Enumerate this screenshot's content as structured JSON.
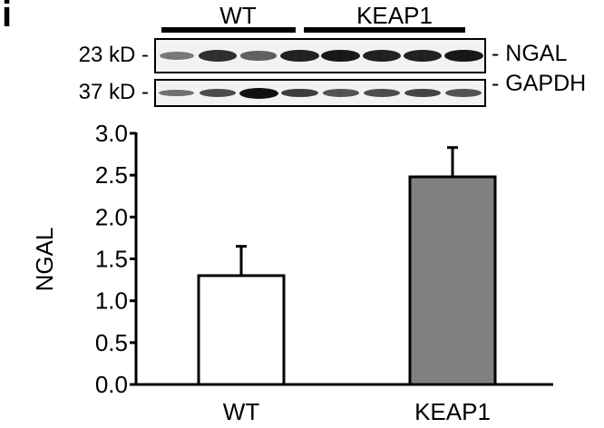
{
  "panel": {
    "letter": "i"
  },
  "blot": {
    "groups": [
      {
        "label": "WT",
        "lanes": 4
      },
      {
        "label": "KEAP1",
        "lanes": 4
      }
    ],
    "rows": [
      {
        "mw_label": "23 kD -",
        "protein_label": "- NGAL",
        "band_intensity": [
          0.3,
          0.8,
          0.45,
          0.9,
          0.95,
          0.9,
          0.9,
          0.95
        ]
      },
      {
        "mw_label": "37 kD -",
        "protein_label": "- GAPDH",
        "band_intensity": [
          0.35,
          0.6,
          1.0,
          0.7,
          0.55,
          0.6,
          0.65,
          0.55
        ]
      }
    ]
  },
  "chart_data": {
    "type": "bar",
    "title": "",
    "xlabel": "",
    "ylabel": "NGAL",
    "categories": [
      "WT",
      "KEAP1"
    ],
    "values": [
      1.3,
      2.48
    ],
    "error_bars_upper": [
      0.35,
      0.35
    ],
    "bar_colors": [
      "#ffffff",
      "#808080"
    ],
    "ylim": [
      0.0,
      3.0
    ],
    "yticks": [
      "0.0",
      "0.5",
      "1.0",
      "1.5",
      "2.0",
      "2.5",
      "3.0"
    ],
    "grid": false,
    "legend": null
  }
}
